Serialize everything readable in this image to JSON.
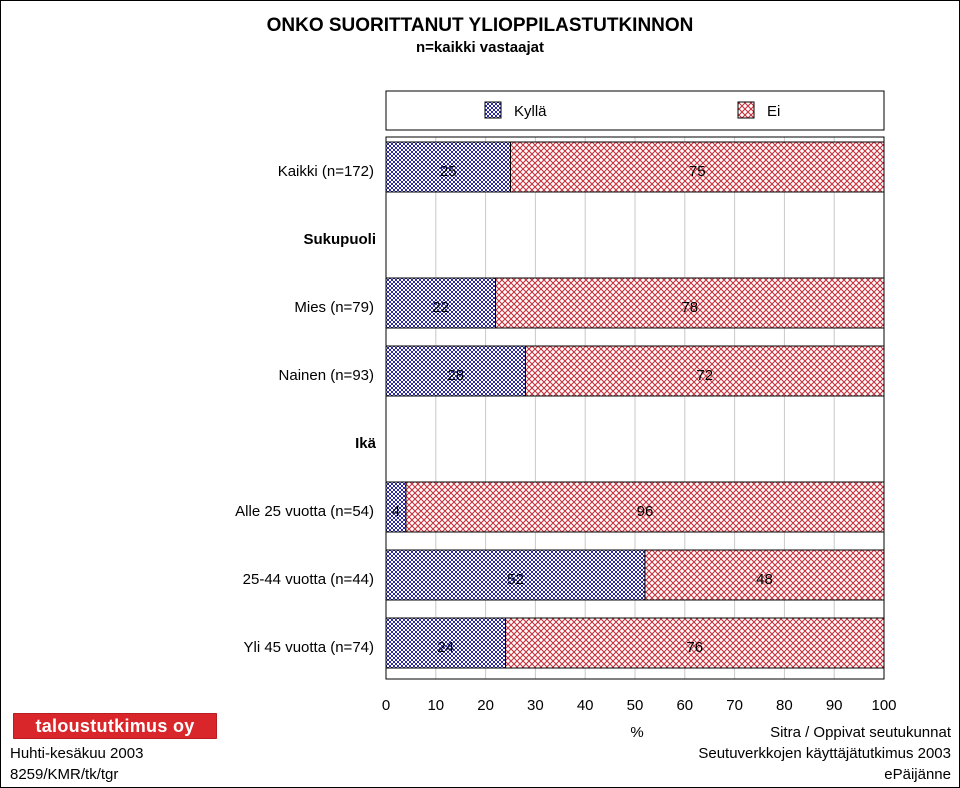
{
  "chart_data": {
    "type": "bar",
    "orientation": "horizontal",
    "stacked": true,
    "title": "ONKO SUORITTANUT YLIOPPILASTUTKINNON",
    "subtitle": "n=kaikki vastaajat",
    "xlabel": "%",
    "xlim": [
      0,
      100
    ],
    "xticks": [
      "0",
      "10",
      "20",
      "30",
      "40",
      "50",
      "60",
      "70",
      "80",
      "90",
      "100"
    ],
    "grid": true,
    "legend_position": "top",
    "rows": [
      {
        "kind": "bar",
        "label": "Kaikki (n=172)",
        "values": [
          25,
          75
        ]
      },
      {
        "kind": "header",
        "label": "Sukupuoli"
      },
      {
        "kind": "bar",
        "label": "Mies (n=79)",
        "values": [
          22,
          78
        ]
      },
      {
        "kind": "bar",
        "label": "Nainen (n=93)",
        "values": [
          28,
          72
        ]
      },
      {
        "kind": "header",
        "label": "Ikä"
      },
      {
        "kind": "bar",
        "label": "Alle 25 vuotta (n=54)",
        "values": [
          4,
          96
        ]
      },
      {
        "kind": "bar",
        "label": "25-44 vuotta (n=44)",
        "values": [
          52,
          48
        ]
      },
      {
        "kind": "bar",
        "label": "Yli 45 vuotta (n=74)",
        "values": [
          24,
          76
        ]
      }
    ],
    "series": [
      {
        "name": "Kyllä",
        "color": "#2c2aa8",
        "pattern": "checker-blue"
      },
      {
        "name": "Ei",
        "color": "#c8303c",
        "pattern": "crosshatch-red"
      }
    ]
  },
  "footer": {
    "logo_text": "taloustutkimus oy",
    "left_line1": "Huhti-kesäkuu 2003",
    "left_line2": "8259/KMR/tk/tgr",
    "right_line1": "Sitra / Oppivat seutukunnat",
    "right_line2": "Seutuverkkojen käyttäjätutkimus 2003",
    "right_line3": "ePäijänne"
  }
}
